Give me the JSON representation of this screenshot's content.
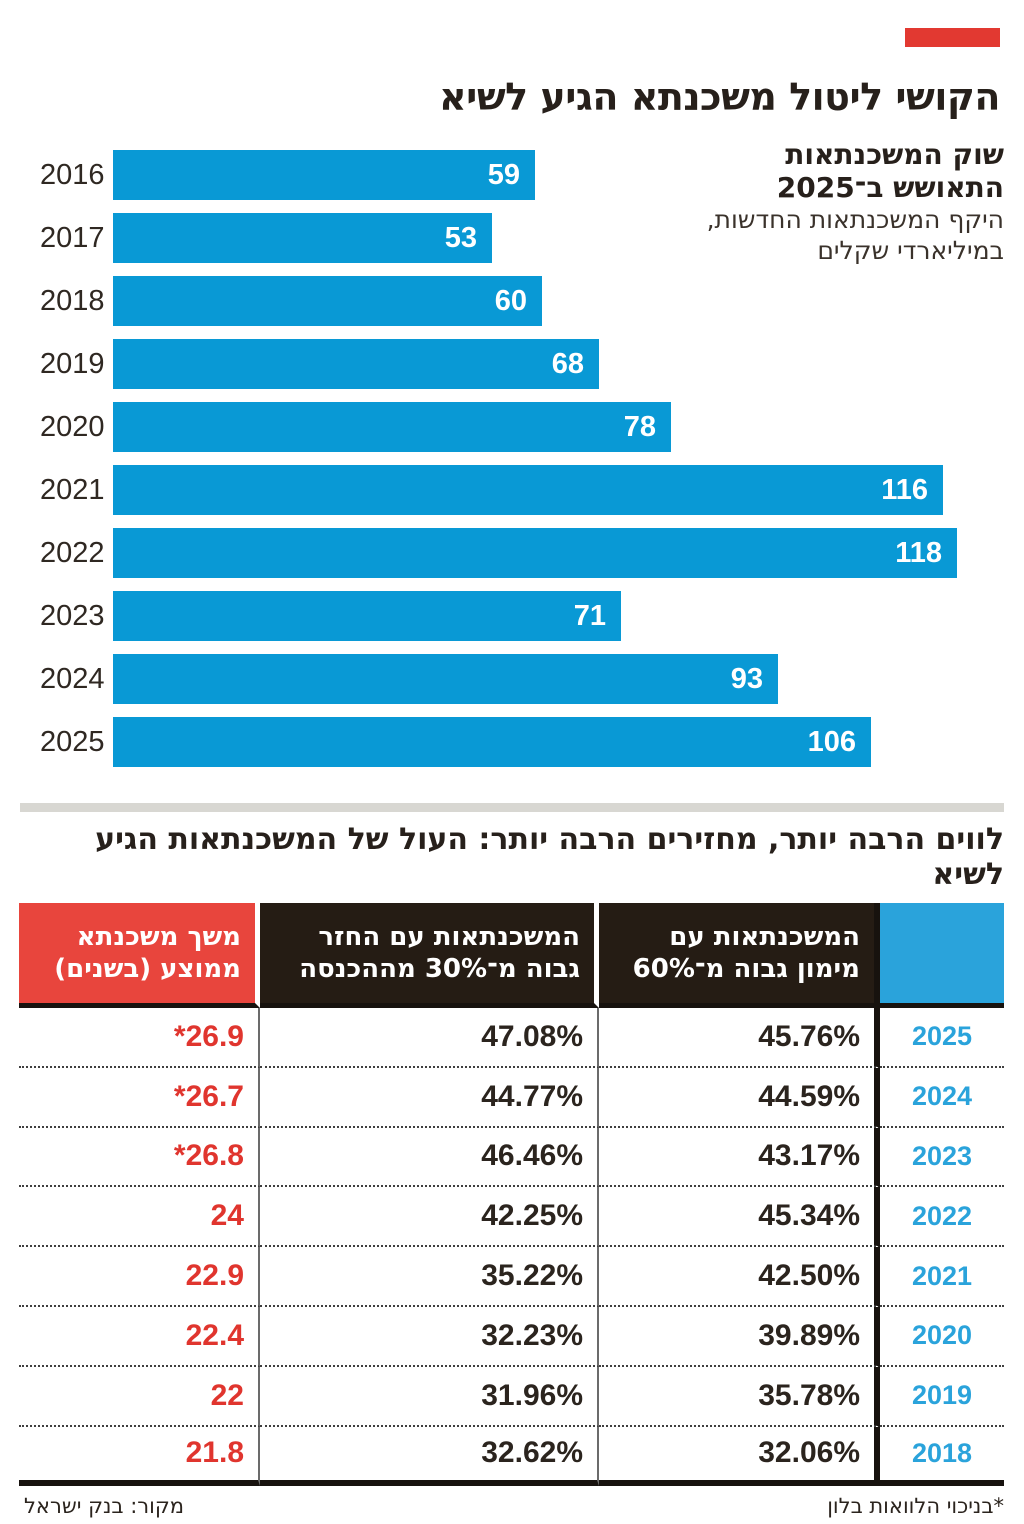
{
  "accent_color": "#e23931",
  "bar_color": "#0999d5",
  "header": {
    "title": "הקושי ליטול משכנתא הגיע לשיא"
  },
  "chart_note": {
    "bold_lines": [
      "שוק המשכנתאות",
      "התאושש ב־2025"
    ],
    "sub_lines": [
      "היקף המשכנתאות החדשות,",
      "במיליארדי שקלים"
    ]
  },
  "chart_data": {
    "type": "bar",
    "orientation": "horizontal",
    "title": "שוק המשכנתאות התאושש ב־2025",
    "subtitle": "היקף המשכנתאות החדשות, במיליארדי שקלים",
    "categories": [
      "2016",
      "2017",
      "2018",
      "2019",
      "2020",
      "2021",
      "2022",
      "2023",
      "2024",
      "2025"
    ],
    "values": [
      59,
      53,
      60,
      68,
      78,
      116,
      118,
      71,
      93,
      106
    ],
    "xlim": [
      0,
      118
    ],
    "bar_color": "#0999d5",
    "value_labels": "inside-end",
    "grid": false
  },
  "section2": {
    "subtitle": "לווים הרבה יותר, מחזירים הרבה יותר: העול של המשכנתאות הגיע לשיא"
  },
  "table": {
    "type": "table",
    "columns": [
      {
        "key": "year",
        "label_lines": [],
        "bg": "#2aa3db"
      },
      {
        "key": "high_ltv",
        "label_lines": [
          "המשכנתאות עם",
          "מימון גבוה מ־60%"
        ],
        "bg": "#251c14"
      },
      {
        "key": "high_pti",
        "label_lines": [
          "המשכנתאות עם החזר",
          "גבוה מ־30% מההכנסה"
        ],
        "bg": "#251c14"
      },
      {
        "key": "duration",
        "label_lines": [
          "משך משכנתא",
          "ממוצע (בשנים)"
        ],
        "bg": "#e8453d"
      }
    ],
    "rows": [
      {
        "year": "2025",
        "high_ltv": "45.76%",
        "high_pti": "47.08%",
        "duration": "*26.9"
      },
      {
        "year": "2024",
        "high_ltv": "44.59%",
        "high_pti": "44.77%",
        "duration": "*26.7"
      },
      {
        "year": "2023",
        "high_ltv": "43.17%",
        "high_pti": "46.46%",
        "duration": "*26.8"
      },
      {
        "year": "2022",
        "high_ltv": "45.34%",
        "high_pti": "42.25%",
        "duration": "24"
      },
      {
        "year": "2021",
        "high_ltv": "42.50%",
        "high_pti": "35.22%",
        "duration": "22.9"
      },
      {
        "year": "2020",
        "high_ltv": "39.89%",
        "high_pti": "32.23%",
        "duration": "22.4"
      },
      {
        "year": "2019",
        "high_ltv": "35.78%",
        "high_pti": "31.96%",
        "duration": "22"
      },
      {
        "year": "2018",
        "high_ltv": "32.06%",
        "high_pti": "32.62%",
        "duration": "21.8"
      }
    ]
  },
  "footer": {
    "note_right": "*בניכוי הלוואות בלון",
    "source_left": "מקור: בנק ישראל"
  }
}
